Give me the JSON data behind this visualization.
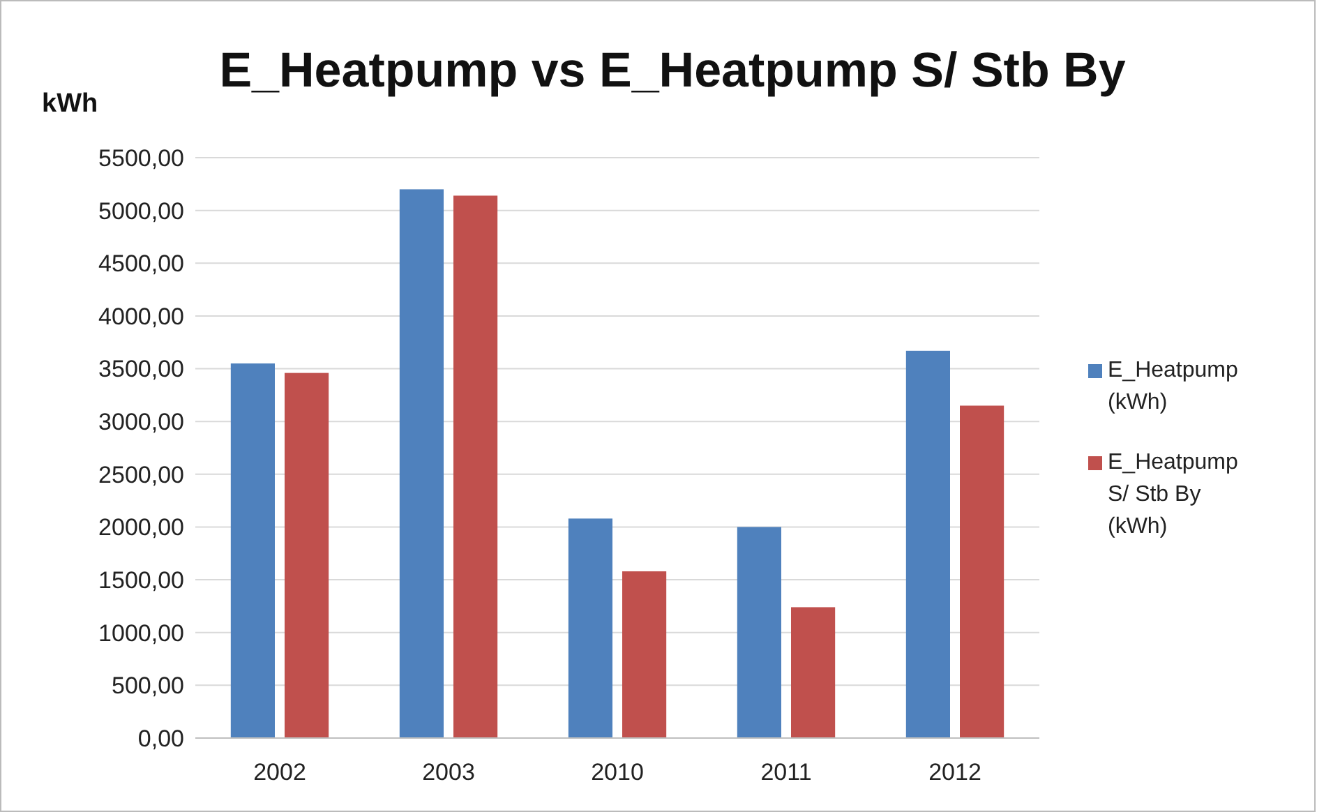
{
  "chart_data": {
    "type": "bar",
    "title": "E_Heatpump vs E_Heatpump S/ Stb By",
    "ylabel": "kWh",
    "categories": [
      "2002",
      "2003",
      "2010",
      "2011",
      "2012"
    ],
    "series": [
      {
        "name": "E_Heatpump (kWh)",
        "color": "#4f81bd",
        "values": [
          3550,
          5200,
          2080,
          2000,
          3670
        ]
      },
      {
        "name": "E_Heatpump S/ Stb By (kWh)",
        "color": "#c0504d",
        "values": [
          3460,
          5140,
          1580,
          1240,
          3150
        ]
      }
    ],
    "ylim": [
      0,
      5500
    ],
    "yticks": [
      {
        "value": 0,
        "label": "0,00"
      },
      {
        "value": 500,
        "label": "500,00"
      },
      {
        "value": 1000,
        "label": "1000,00"
      },
      {
        "value": 1500,
        "label": "1500,00"
      },
      {
        "value": 2000,
        "label": "2000,00"
      },
      {
        "value": 2500,
        "label": "2500,00"
      },
      {
        "value": 3000,
        "label": "3000,00"
      },
      {
        "value": 3500,
        "label": "3500,00"
      },
      {
        "value": 4000,
        "label": "4000,00"
      },
      {
        "value": 4500,
        "label": "4500,00"
      },
      {
        "value": 5000,
        "label": "5000,00"
      },
      {
        "value": 5500,
        "label": "5500,00"
      }
    ],
    "grid": "y",
    "legend": "right"
  }
}
